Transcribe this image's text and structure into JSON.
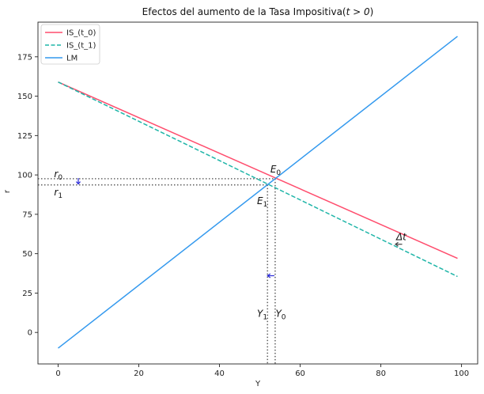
{
  "chart_data": {
    "type": "line",
    "title_prefix": "Efectos del aumento de la Tasa Impositiva(",
    "title_math": "t > 0",
    "title_suffix": ")",
    "xlabel": "Y",
    "ylabel": "r",
    "xlim": [
      -5,
      104
    ],
    "ylim": [
      -20,
      197
    ],
    "xticks": [
      0,
      20,
      40,
      60,
      80,
      100
    ],
    "yticks": [
      0,
      25,
      50,
      75,
      100,
      125,
      150,
      175
    ],
    "grid": false,
    "legend_position": "top-left",
    "series": [
      {
        "name": "IS_(t_0)",
        "color": "#ff4d6d",
        "dash": "solid",
        "x": [
          0,
          99
        ],
        "y": [
          159,
          47
        ]
      },
      {
        "name": "IS_(t_1)",
        "color": "#1fb5a8",
        "dash": "dashed",
        "x": [
          0,
          99
        ],
        "y": [
          159,
          35.5
        ]
      },
      {
        "name": "LM",
        "color": "#3399ee",
        "dash": "solid",
        "x": [
          0,
          99
        ],
        "y": [
          -10,
          188
        ]
      }
    ],
    "equilibrium": {
      "E0": {
        "x": 53.8,
        "y": 97.6
      },
      "E1": {
        "x": 51.9,
        "y": 93.7
      }
    },
    "annotations": [
      {
        "base": "E",
        "sub": "0",
        "x": 52.6,
        "y": 101.5
      },
      {
        "base": "E",
        "sub": "1",
        "x": 49.3,
        "y": 81.5
      },
      {
        "base": "r",
        "sub": "0",
        "x": -1,
        "y": 98.5
      },
      {
        "base": "r",
        "sub": "1",
        "x": -1,
        "y": 87
      },
      {
        "base": "Y",
        "sub": "1",
        "x": 49.3,
        "y": 10
      },
      {
        "base": "Y",
        "sub": "0",
        "x": 53.9,
        "y": 10
      },
      {
        "base": "Δt",
        "sub": "",
        "x": 83.8,
        "y": 58.5
      }
    ],
    "arrows": [
      {
        "direction": "down",
        "x": 5,
        "y": 96,
        "color": "#2b2bd9"
      },
      {
        "direction": "left",
        "x": 52.8,
        "y": 36,
        "color": "#2b2bd9"
      },
      {
        "direction": "left",
        "x": 84.5,
        "y": 56,
        "color": "#444444"
      }
    ]
  }
}
